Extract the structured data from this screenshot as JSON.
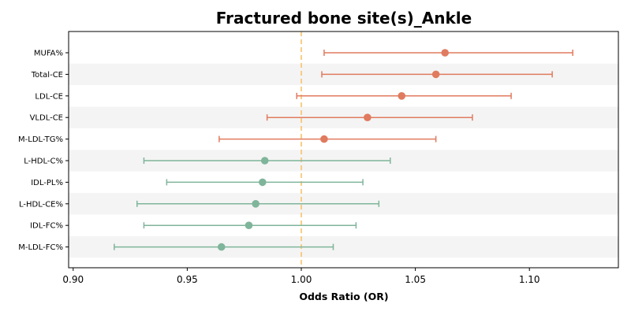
{
  "chart_data": {
    "type": "scatter",
    "title": "Fractured bone site(s)_Ankle",
    "xlabel": "Odds Ratio (OR)",
    "ylabel": "",
    "xlim": [
      0.898,
      1.139
    ],
    "xticks": [
      0.9,
      0.95,
      1.0,
      1.05,
      1.1
    ],
    "xtick_labels": [
      "0.90",
      "0.95",
      "1.00",
      "1.05",
      "1.10"
    ],
    "reference_line": 1.0,
    "grid": false,
    "colors": {
      "positive": "#e07b5f",
      "negative": "#7fb59a",
      "reference": "#f6c26a",
      "band": "#f4f4f4"
    },
    "categories": [
      "MUFA%",
      "Total-CE",
      "LDL-CE",
      "VLDL-CE",
      "M-LDL-TG%",
      "L-HDL-C%",
      "IDL-PL%",
      "L-HDL-CE%",
      "IDL-FC%",
      "M-LDL-FC%"
    ],
    "points": [
      {
        "label": "MUFA%",
        "or": 1.063,
        "lower": 1.01,
        "upper": 1.119,
        "group": "positive"
      },
      {
        "label": "Total-CE",
        "or": 1.059,
        "lower": 1.009,
        "upper": 1.11,
        "group": "positive"
      },
      {
        "label": "LDL-CE",
        "or": 1.044,
        "lower": 0.998,
        "upper": 1.092,
        "group": "positive"
      },
      {
        "label": "VLDL-CE",
        "or": 1.029,
        "lower": 0.985,
        "upper": 1.075,
        "group": "positive"
      },
      {
        "label": "M-LDL-TG%",
        "or": 1.01,
        "lower": 0.964,
        "upper": 1.059,
        "group": "positive"
      },
      {
        "label": "L-HDL-C%",
        "or": 0.984,
        "lower": 0.931,
        "upper": 1.039,
        "group": "negative"
      },
      {
        "label": "IDL-PL%",
        "or": 0.983,
        "lower": 0.941,
        "upper": 1.027,
        "group": "negative"
      },
      {
        "label": "L-HDL-CE%",
        "or": 0.98,
        "lower": 0.928,
        "upper": 1.034,
        "group": "negative"
      },
      {
        "label": "IDL-FC%",
        "or": 0.977,
        "lower": 0.931,
        "upper": 1.024,
        "group": "negative"
      },
      {
        "label": "M-LDL-FC%",
        "or": 0.965,
        "lower": 0.918,
        "upper": 1.014,
        "group": "negative"
      }
    ]
  }
}
